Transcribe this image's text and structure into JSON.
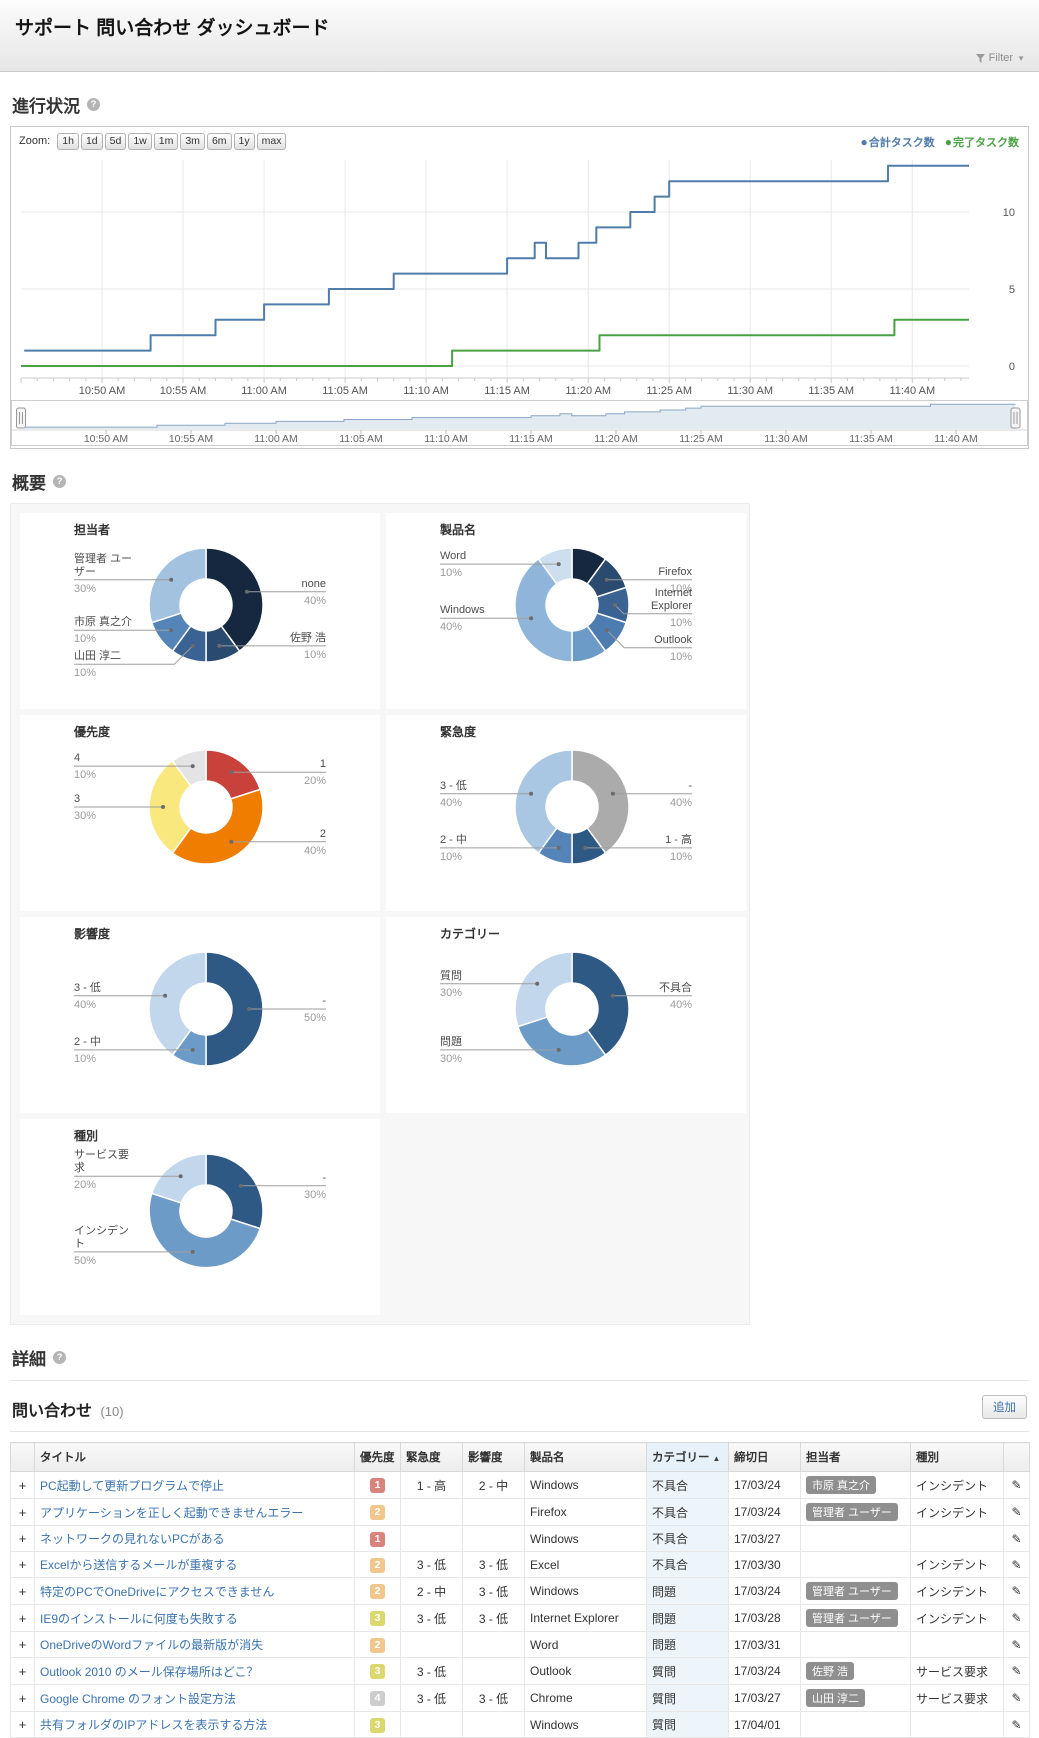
{
  "header": {
    "title": "サポート 問い合わせ ダッシュボード",
    "filter_label": "Filter"
  },
  "sections": {
    "progress": "進行状況",
    "overview": "概要",
    "detail": "詳細"
  },
  "progress_toolbar": {
    "zoom_label": "Zoom:",
    "zoom_buttons": [
      "1h",
      "1d",
      "5d",
      "1w",
      "1m",
      "3m",
      "6m",
      "1y",
      "max"
    ]
  },
  "chart_data": [
    {
      "type": "line",
      "title": "進行状況",
      "x_start": "10:45 AM",
      "x_end": "11:43 AM",
      "x_tick_labels": [
        "10:50 AM",
        "10:55 AM",
        "11:00 AM",
        "11:05 AM",
        "11:10 AM",
        "11:15 AM",
        "11:20 AM",
        "11:25 AM",
        "11:30 AM",
        "11:35 AM",
        "11:40 AM"
      ],
      "y_tick_labels": [
        "0",
        "5",
        "10"
      ],
      "y_axis_side": "right",
      "grid": true,
      "legend_position": "top-right",
      "navigator": true,
      "minutes_origin": "10:45 AM",
      "series": [
        {
          "name": "合計タスク数",
          "color": "#4e7cab",
          "step": true,
          "points_min": [
            [
              0.2,
              1
            ],
            [
              8,
              2
            ],
            [
              12,
              3
            ],
            [
              15,
              4
            ],
            [
              19,
              5
            ],
            [
              23,
              6
            ],
            [
              30,
              7
            ],
            [
              31.7,
              8
            ],
            [
              32.4,
              7
            ],
            [
              34.4,
              8
            ],
            [
              35.5,
              9
            ],
            [
              37.6,
              10
            ],
            [
              39.1,
              11
            ],
            [
              40,
              12
            ],
            [
              53.5,
              13
            ]
          ]
        },
        {
          "name": "完了タスク数",
          "color": "#4aa145",
          "step": true,
          "points_min": [
            [
              0,
              0
            ],
            [
              26.6,
              1
            ],
            [
              35.7,
              2
            ],
            [
              53.9,
              3
            ]
          ]
        }
      ],
      "x_end_min": 58.5
    },
    {
      "type": "pie",
      "donut": true,
      "title": "担当者",
      "segments": [
        {
          "label": "none",
          "value": 40,
          "color": "#152840"
        },
        {
          "label": "佐野 浩",
          "value": 10,
          "color": "#2a4a70"
        },
        {
          "label": "山田 淳二",
          "value": 10,
          "color": "#3a6292"
        },
        {
          "label": "市原 真之介",
          "value": 10,
          "color": "#5585b8"
        },
        {
          "label": "管理者 ユーザー",
          "value": 30,
          "color": "#a3c2e0"
        }
      ]
    },
    {
      "type": "pie",
      "donut": true,
      "title": "製品名",
      "segments": [
        {
          "label": "",
          "value": 10,
          "color": "#152840"
        },
        {
          "label": "Firefox",
          "value": 10,
          "color": "#2a4a70"
        },
        {
          "label": "Internet Explorer",
          "value": 10,
          "color": "#3a6292"
        },
        {
          "label": "Outlook",
          "value": 10,
          "color": "#4d7cb0"
        },
        {
          "label": "",
          "value": 10,
          "color": "#6d9bc8"
        },
        {
          "label": "Windows",
          "value": 40,
          "color": "#8fb6da"
        },
        {
          "label": "Word",
          "value": 10,
          "color": "#cddeee"
        }
      ]
    },
    {
      "type": "pie",
      "donut": true,
      "title": "優先度",
      "segments": [
        {
          "label": "1",
          "value": 20,
          "color": "#c8413a"
        },
        {
          "label": "2",
          "value": 40,
          "color": "#ef7d00"
        },
        {
          "label": "3",
          "value": 30,
          "color": "#f9e87d"
        },
        {
          "label": "4",
          "value": 10,
          "color": "#e4e4e4"
        }
      ]
    },
    {
      "type": "pie",
      "donut": true,
      "title": "緊急度",
      "segments": [
        {
          "label": "-",
          "value": 40,
          "color": "#ababab"
        },
        {
          "label": "1 - 高",
          "value": 10,
          "color": "#2e5985"
        },
        {
          "label": "2 - 中",
          "value": 10,
          "color": "#5585b8"
        },
        {
          "label": "3 - 低",
          "value": 40,
          "color": "#a9c7e2"
        }
      ]
    },
    {
      "type": "pie",
      "donut": true,
      "title": "影響度",
      "segments": [
        {
          "label": "-",
          "value": 50,
          "color": "#2e5985"
        },
        {
          "label": "2 - 中",
          "value": 10,
          "color": "#6d9bc8"
        },
        {
          "label": "3 - 低",
          "value": 40,
          "color": "#c3d7ec"
        }
      ]
    },
    {
      "type": "pie",
      "donut": true,
      "title": "カテゴリー",
      "segments": [
        {
          "label": "不具合",
          "value": 40,
          "color": "#2e5985"
        },
        {
          "label": "問題",
          "value": 30,
          "color": "#6d9bc8"
        },
        {
          "label": "質問",
          "value": 30,
          "color": "#c3d7ec"
        }
      ]
    },
    {
      "type": "pie",
      "donut": true,
      "title": "種別",
      "segments": [
        {
          "label": "-",
          "value": 30,
          "color": "#2e5985"
        },
        {
          "label": "インシデント",
          "value": 50,
          "color": "#6d9bc8"
        },
        {
          "label": "サービス要求",
          "value": 20,
          "color": "#c3d7ec"
        }
      ]
    }
  ],
  "inquiries": {
    "title": "問い合わせ",
    "count": "(10)",
    "add_label": "追加",
    "columns": [
      "タイトル",
      "優先度",
      "緊急度",
      "影響度",
      "製品名",
      "カテゴリー",
      "締切日",
      "担当者",
      "種別"
    ],
    "sorted_column": "カテゴリー",
    "priority_colors": {
      "1": "#d9837d",
      "2": "#f2c78e",
      "3": "#ddd76f",
      "4": "#cdcdcd"
    },
    "rows": [
      {
        "title": "PC起動して更新プログラムで停止",
        "priority": "1",
        "urgency": "1 - 高",
        "impact": "2 - 中",
        "product": "Windows",
        "category": "不具合",
        "due": "17/03/24",
        "assignee": "市原 真之介",
        "type": "インシデント"
      },
      {
        "title": "アプリケーションを正しく起動できませんエラー",
        "priority": "2",
        "urgency": "",
        "impact": "",
        "product": "Firefox",
        "category": "不具合",
        "due": "17/03/24",
        "assignee": "管理者 ユーザー",
        "type": "インシデント"
      },
      {
        "title": "ネットワークの見れないPCがある",
        "priority": "1",
        "urgency": "",
        "impact": "",
        "product": "Windows",
        "category": "不具合",
        "due": "17/03/27",
        "assignee": "",
        "type": ""
      },
      {
        "title": "Excelから送信するメールが重複する",
        "priority": "2",
        "urgency": "3 - 低",
        "impact": "3 - 低",
        "product": "Excel",
        "category": "不具合",
        "due": "17/03/30",
        "assignee": "",
        "type": "インシデント"
      },
      {
        "title": "特定のPCでOneDriveにアクセスできません",
        "priority": "2",
        "urgency": "2 - 中",
        "impact": "3 - 低",
        "product": "Windows",
        "category": "問題",
        "due": "17/03/24",
        "assignee": "管理者 ユーザー",
        "type": "インシデント"
      },
      {
        "title": "IE9のインストールに何度も失敗する",
        "priority": "3",
        "urgency": "3 - 低",
        "impact": "3 - 低",
        "product": "Internet Explorer",
        "category": "問題",
        "due": "17/03/28",
        "assignee": "管理者 ユーザー",
        "type": "インシデント"
      },
      {
        "title": "OneDriveのWordファイルの最新版が消失",
        "priority": "2",
        "urgency": "",
        "impact": "",
        "product": "Word",
        "category": "問題",
        "due": "17/03/31",
        "assignee": "",
        "type": ""
      },
      {
        "title": "Outlook 2010 のメール保存場所はどこ？",
        "priority": "3",
        "urgency": "3 - 低",
        "impact": "",
        "product": "Outlook",
        "category": "質問",
        "due": "17/03/24",
        "assignee": "佐野 浩",
        "type": "サービス要求"
      },
      {
        "title": "Google Chrome のフォント設定方法",
        "priority": "4",
        "urgency": "3 - 低",
        "impact": "3 - 低",
        "product": "Chrome",
        "category": "質問",
        "due": "17/03/27",
        "assignee": "山田 淳二",
        "type": "サービス要求"
      },
      {
        "title": "共有フォルダのIPアドレスを表示する方法",
        "priority": "3",
        "urgency": "",
        "impact": "",
        "product": "Windows",
        "category": "質問",
        "due": "17/04/01",
        "assignee": "",
        "type": ""
      }
    ]
  }
}
